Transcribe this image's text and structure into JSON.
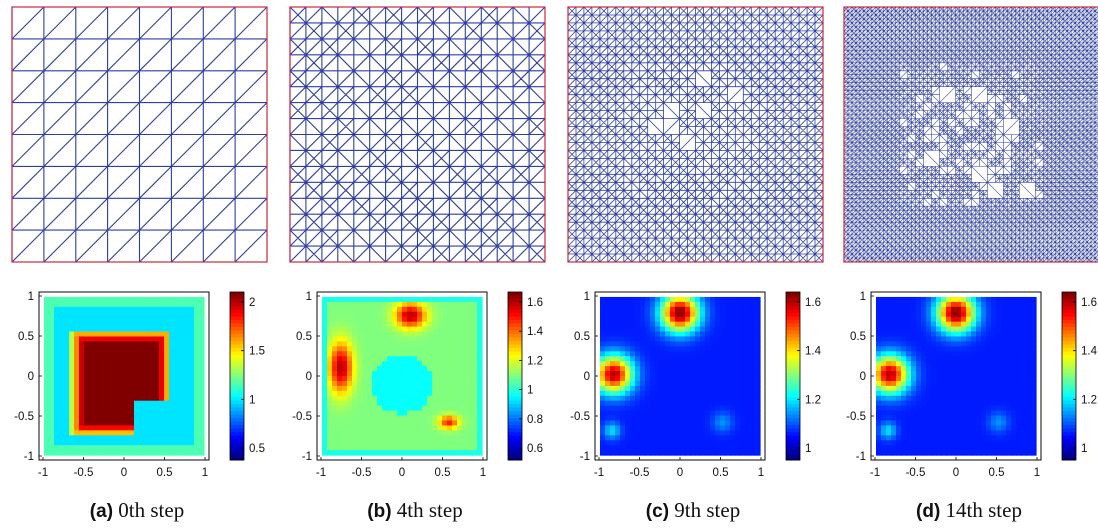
{
  "figure": {
    "panels": [
      {
        "id": "a",
        "letter": "(a)",
        "caption": "0th step",
        "refine_depth": 0,
        "blob_regions": [],
        "colorbar": {
          "ticks": [
            "2",
            "1.5",
            "1",
            "0.5"
          ]
        },
        "x_ticks": [
          "-1",
          "-0.5",
          "0",
          "0.5",
          "1"
        ],
        "y_ticks": [
          "1",
          "0.5",
          "0",
          "-0.5",
          "-1"
        ]
      },
      {
        "id": "b",
        "letter": "(b)",
        "caption": "4th step",
        "refine_depth": 1,
        "colorbar": {
          "ticks": [
            "1.6",
            "1.4",
            "1.2",
            "1",
            "0.8",
            "0.6"
          ]
        },
        "x_ticks": [
          "-1",
          "-0.5",
          "0",
          "0.5",
          "1"
        ],
        "y_ticks": [
          "1",
          "0.5",
          "0",
          "-0.5",
          "-1"
        ]
      },
      {
        "id": "c",
        "letter": "(c)",
        "caption": "9th step",
        "refine_depth": 2,
        "colorbar": {
          "ticks": [
            "1.6",
            "1.4",
            "1.2",
            "1"
          ]
        },
        "x_ticks": [
          "-1",
          "-0.5",
          "0",
          "0.5",
          "1"
        ],
        "y_ticks": [
          "1",
          "0.5",
          "0",
          "-0.5",
          "-1"
        ]
      },
      {
        "id": "d",
        "letter": "(d)",
        "caption": "14th step",
        "refine_depth": 3,
        "colorbar": {
          "ticks": [
            "1.6",
            "1.4",
            "1.2",
            "1"
          ]
        },
        "x_ticks": [
          "-1",
          "-0.5",
          "0",
          "0.5",
          "1"
        ],
        "y_ticks": [
          "1",
          "0.5",
          "0",
          "-0.5",
          "-1"
        ]
      }
    ],
    "colors": {
      "mesh_line": "#2f3f9e",
      "mesh_border": "#c8283c",
      "background_low": "#2b4fb8"
    }
  }
}
